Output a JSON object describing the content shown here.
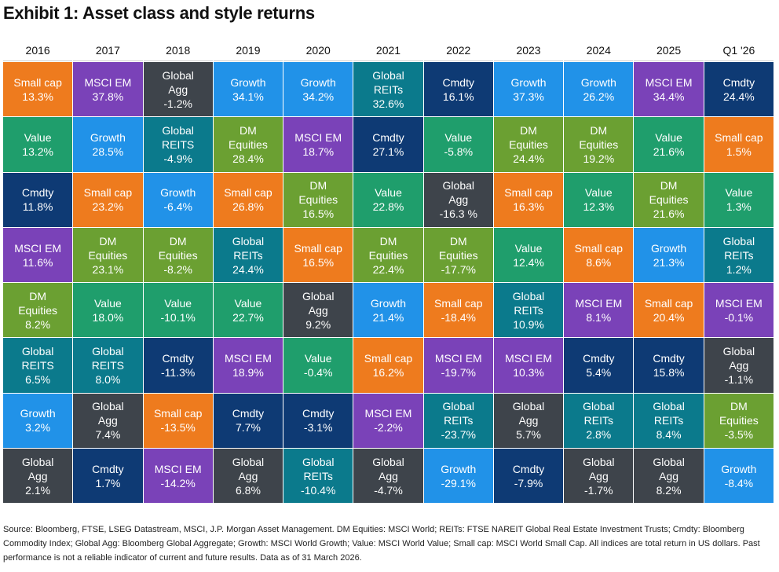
{
  "header": {
    "title": "Exhibit 1: Asset class and style returns"
  },
  "table": {
    "columns": [
      {
        "header": "2016",
        "cells": [
          {
            "label": "Small cap",
            "value": "13.3%",
            "color": "#ee7b1e"
          },
          {
            "label": "Value",
            "value": "13.2%",
            "color": "#1f9e6c"
          },
          {
            "label": "Cmdty",
            "value": "11.8%",
            "color": "#0e3a74"
          },
          {
            "label": "MSCI EM",
            "value": "11.6%",
            "color": "#7a42b8"
          },
          {
            "label": "DM\nEquities",
            "value": "8.2%",
            "color": "#6ba032"
          },
          {
            "label": "Global\nREITS",
            "value": "6.5%",
            "color": "#0b7a8c"
          },
          {
            "label": "Growth",
            "value": "3.2%",
            "color": "#2192e8"
          },
          {
            "label": "Global\nAgg",
            "value": "2.1%",
            "color": "#3e444b"
          }
        ]
      },
      {
        "header": "2017",
        "cells": [
          {
            "label": "MSCI EM",
            "value": "37.8%",
            "color": "#7a42b8"
          },
          {
            "label": "Growth",
            "value": "28.5%",
            "color": "#2192e8"
          },
          {
            "label": "Small cap",
            "value": "23.2%",
            "color": "#ee7b1e"
          },
          {
            "label": "DM\nEquities",
            "value": "23.1%",
            "color": "#6ba032"
          },
          {
            "label": "Value",
            "value": "18.0%",
            "color": "#1f9e6c"
          },
          {
            "label": "Global\nREITS",
            "value": "8.0%",
            "color": "#0b7a8c"
          },
          {
            "label": "Global\nAgg",
            "value": "7.4%",
            "color": "#3e444b"
          },
          {
            "label": "Cmdty",
            "value": "1.7%",
            "color": "#0e3a74"
          }
        ]
      },
      {
        "header": "2018",
        "cells": [
          {
            "label": "Global\nAgg",
            "value": "-1.2%",
            "color": "#3e444b"
          },
          {
            "label": "Global\nREITS",
            "value": "-4.9%",
            "color": "#0b7a8c"
          },
          {
            "label": "Growth",
            "value": "-6.4%",
            "color": "#2192e8"
          },
          {
            "label": "DM\nEquities",
            "value": "-8.2%",
            "color": "#6ba032"
          },
          {
            "label": "Value",
            "value": "-10.1%",
            "color": "#1f9e6c"
          },
          {
            "label": "Cmdty",
            "value": "-11.3%",
            "color": "#0e3a74"
          },
          {
            "label": "Small cap",
            "value": "-13.5%",
            "color": "#ee7b1e"
          },
          {
            "label": "MSCI EM",
            "value": "-14.2%",
            "color": "#7a42b8"
          }
        ]
      },
      {
        "header": "2019",
        "cells": [
          {
            "label": "Growth",
            "value": "34.1%",
            "color": "#2192e8"
          },
          {
            "label": "DM\nEquities",
            "value": "28.4%",
            "color": "#6ba032"
          },
          {
            "label": "Small cap",
            "value": "26.8%",
            "color": "#ee7b1e"
          },
          {
            "label": "Global\nREITs",
            "value": "24.4%",
            "color": "#0b7a8c"
          },
          {
            "label": "Value",
            "value": "22.7%",
            "color": "#1f9e6c"
          },
          {
            "label": "MSCI EM",
            "value": "18.9%",
            "color": "#7a42b8"
          },
          {
            "label": "Cmdty",
            "value": "7.7%",
            "color": "#0e3a74"
          },
          {
            "label": "Global\nAgg",
            "value": "6.8%",
            "color": "#3e444b"
          }
        ]
      },
      {
        "header": "2020",
        "cells": [
          {
            "label": "Growth",
            "value": "34.2%",
            "color": "#2192e8"
          },
          {
            "label": "MSCI EM",
            "value": "18.7%",
            "color": "#7a42b8"
          },
          {
            "label": "DM\nEquities",
            "value": "16.5%",
            "color": "#6ba032"
          },
          {
            "label": "Small cap",
            "value": "16.5%",
            "color": "#ee7b1e"
          },
          {
            "label": "Global\nAgg",
            "value": "9.2%",
            "color": "#3e444b"
          },
          {
            "label": "Value",
            "value": "-0.4%",
            "color": "#1f9e6c"
          },
          {
            "label": "Cmdty",
            "value": "-3.1%",
            "color": "#0e3a74"
          },
          {
            "label": "Global\nREITs",
            "value": "-10.4%",
            "color": "#0b7a8c"
          }
        ]
      },
      {
        "header": "2021",
        "cells": [
          {
            "label": "Global\nREITs",
            "value": "32.6%",
            "color": "#0b7a8c"
          },
          {
            "label": "Cmdty",
            "value": "27.1%",
            "color": "#0e3a74"
          },
          {
            "label": "Value",
            "value": "22.8%",
            "color": "#1f9e6c"
          },
          {
            "label": "DM\nEquities",
            "value": "22.4%",
            "color": "#6ba032"
          },
          {
            "label": "Growth",
            "value": "21.4%",
            "color": "#2192e8"
          },
          {
            "label": "Small cap",
            "value": "16.2%",
            "color": "#ee7b1e"
          },
          {
            "label": "MSCI EM",
            "value": "-2.2%",
            "color": "#7a42b8"
          },
          {
            "label": "Global\nAgg",
            "value": "-4.7%",
            "color": "#3e444b"
          }
        ]
      },
      {
        "header": "2022",
        "cells": [
          {
            "label": "Cmdty",
            "value": "16.1%",
            "color": "#0e3a74"
          },
          {
            "label": "Value",
            "value": "-5.8%",
            "color": "#1f9e6c"
          },
          {
            "label": "Global\nAgg",
            "value": "-16.3 %",
            "color": "#3e444b"
          },
          {
            "label": "DM\nEquities",
            "value": "-17.7%",
            "color": "#6ba032"
          },
          {
            "label": "Small cap",
            "value": "-18.4%",
            "color": "#ee7b1e"
          },
          {
            "label": "MSCI EM",
            "value": "-19.7%",
            "color": "#7a42b8"
          },
          {
            "label": "Global\nREITs",
            "value": "-23.7%",
            "color": "#0b7a8c"
          },
          {
            "label": "Growth",
            "value": "-29.1%",
            "color": "#2192e8"
          }
        ]
      },
      {
        "header": "2023",
        "cells": [
          {
            "label": "Growth",
            "value": "37.3%",
            "color": "#2192e8"
          },
          {
            "label": "DM\nEquities",
            "value": "24.4%",
            "color": "#6ba032"
          },
          {
            "label": "Small cap",
            "value": "16.3%",
            "color": "#ee7b1e"
          },
          {
            "label": "Value",
            "value": "12.4%",
            "color": "#1f9e6c"
          },
          {
            "label": "Global\nREITs",
            "value": "10.9%",
            "color": "#0b7a8c"
          },
          {
            "label": "MSCI EM",
            "value": "10.3%",
            "color": "#7a42b8"
          },
          {
            "label": "Global\nAgg",
            "value": "5.7%",
            "color": "#3e444b"
          },
          {
            "label": "Cmdty",
            "value": "-7.9%",
            "color": "#0e3a74"
          }
        ]
      },
      {
        "header": "2024",
        "cells": [
          {
            "label": "Growth",
            "value": "26.2%",
            "color": "#2192e8"
          },
          {
            "label": "DM\nEquities",
            "value": "19.2%",
            "color": "#6ba032"
          },
          {
            "label": "Value",
            "value": "12.3%",
            "color": "#1f9e6c"
          },
          {
            "label": "Small cap",
            "value": "8.6%",
            "color": "#ee7b1e"
          },
          {
            "label": "MSCI EM",
            "value": "8.1%",
            "color": "#7a42b8"
          },
          {
            "label": "Cmdty",
            "value": "5.4%",
            "color": "#0e3a74"
          },
          {
            "label": "Global\nREITs",
            "value": "2.8%",
            "color": "#0b7a8c"
          },
          {
            "label": "Global\nAgg",
            "value": "-1.7%",
            "color": "#3e444b"
          }
        ]
      },
      {
        "header": "2025",
        "cells": [
          {
            "label": "MSCI EM",
            "value": "34.4%",
            "color": "#7a42b8"
          },
          {
            "label": "Value",
            "value": "21.6%",
            "color": "#1f9e6c"
          },
          {
            "label": "DM\nEquities",
            "value": "21.6%",
            "color": "#6ba032"
          },
          {
            "label": "Growth",
            "value": "21.3%",
            "color": "#2192e8"
          },
          {
            "label": "Small cap",
            "value": "20.4%",
            "color": "#ee7b1e"
          },
          {
            "label": "Cmdty",
            "value": "15.8%",
            "color": "#0e3a74"
          },
          {
            "label": "Global\nREITs",
            "value": "8.4%",
            "color": "#0b7a8c"
          },
          {
            "label": "Global\nAgg",
            "value": "8.2%",
            "color": "#3e444b"
          }
        ]
      },
      {
        "header": "Q1 '26",
        "cells": [
          {
            "label": "Cmdty",
            "value": "24.4%",
            "color": "#0e3a74"
          },
          {
            "label": "Small cap",
            "value": "1.5%",
            "color": "#ee7b1e"
          },
          {
            "label": "Value",
            "value": "1.3%",
            "color": "#1f9e6c"
          },
          {
            "label": "Global\nREITs",
            "value": "1.2%",
            "color": "#0b7a8c"
          },
          {
            "label": "MSCI EM",
            "value": "-0.1%",
            "color": "#7a42b8"
          },
          {
            "label": "Global\nAgg",
            "value": "-1.1%",
            "color": "#3e444b"
          },
          {
            "label": "DM\nEquities",
            "value": "-3.5%",
            "color": "#6ba032"
          },
          {
            "label": "Growth",
            "value": "-8.4%",
            "color": "#2192e8"
          }
        ]
      }
    ]
  },
  "footer": {
    "source": "Source: Bloomberg, FTSE, LSEG Datastream, MSCI, J.P. Morgan Asset Management. DM Equities: MSCI World; REITs: FTSE NAREIT Global Real Estate Investment Trusts; Cmdty: Bloomberg Commodity Index; Global Agg: Bloomberg Global Aggregate; Growth: MSCI World Growth; Value: MSCI World Value; Small cap: MSCI World Small Cap. All indices are total return in US dollars. Past performance is not a reliable indicator of current and future results. Data as of 31 March 2026."
  }
}
